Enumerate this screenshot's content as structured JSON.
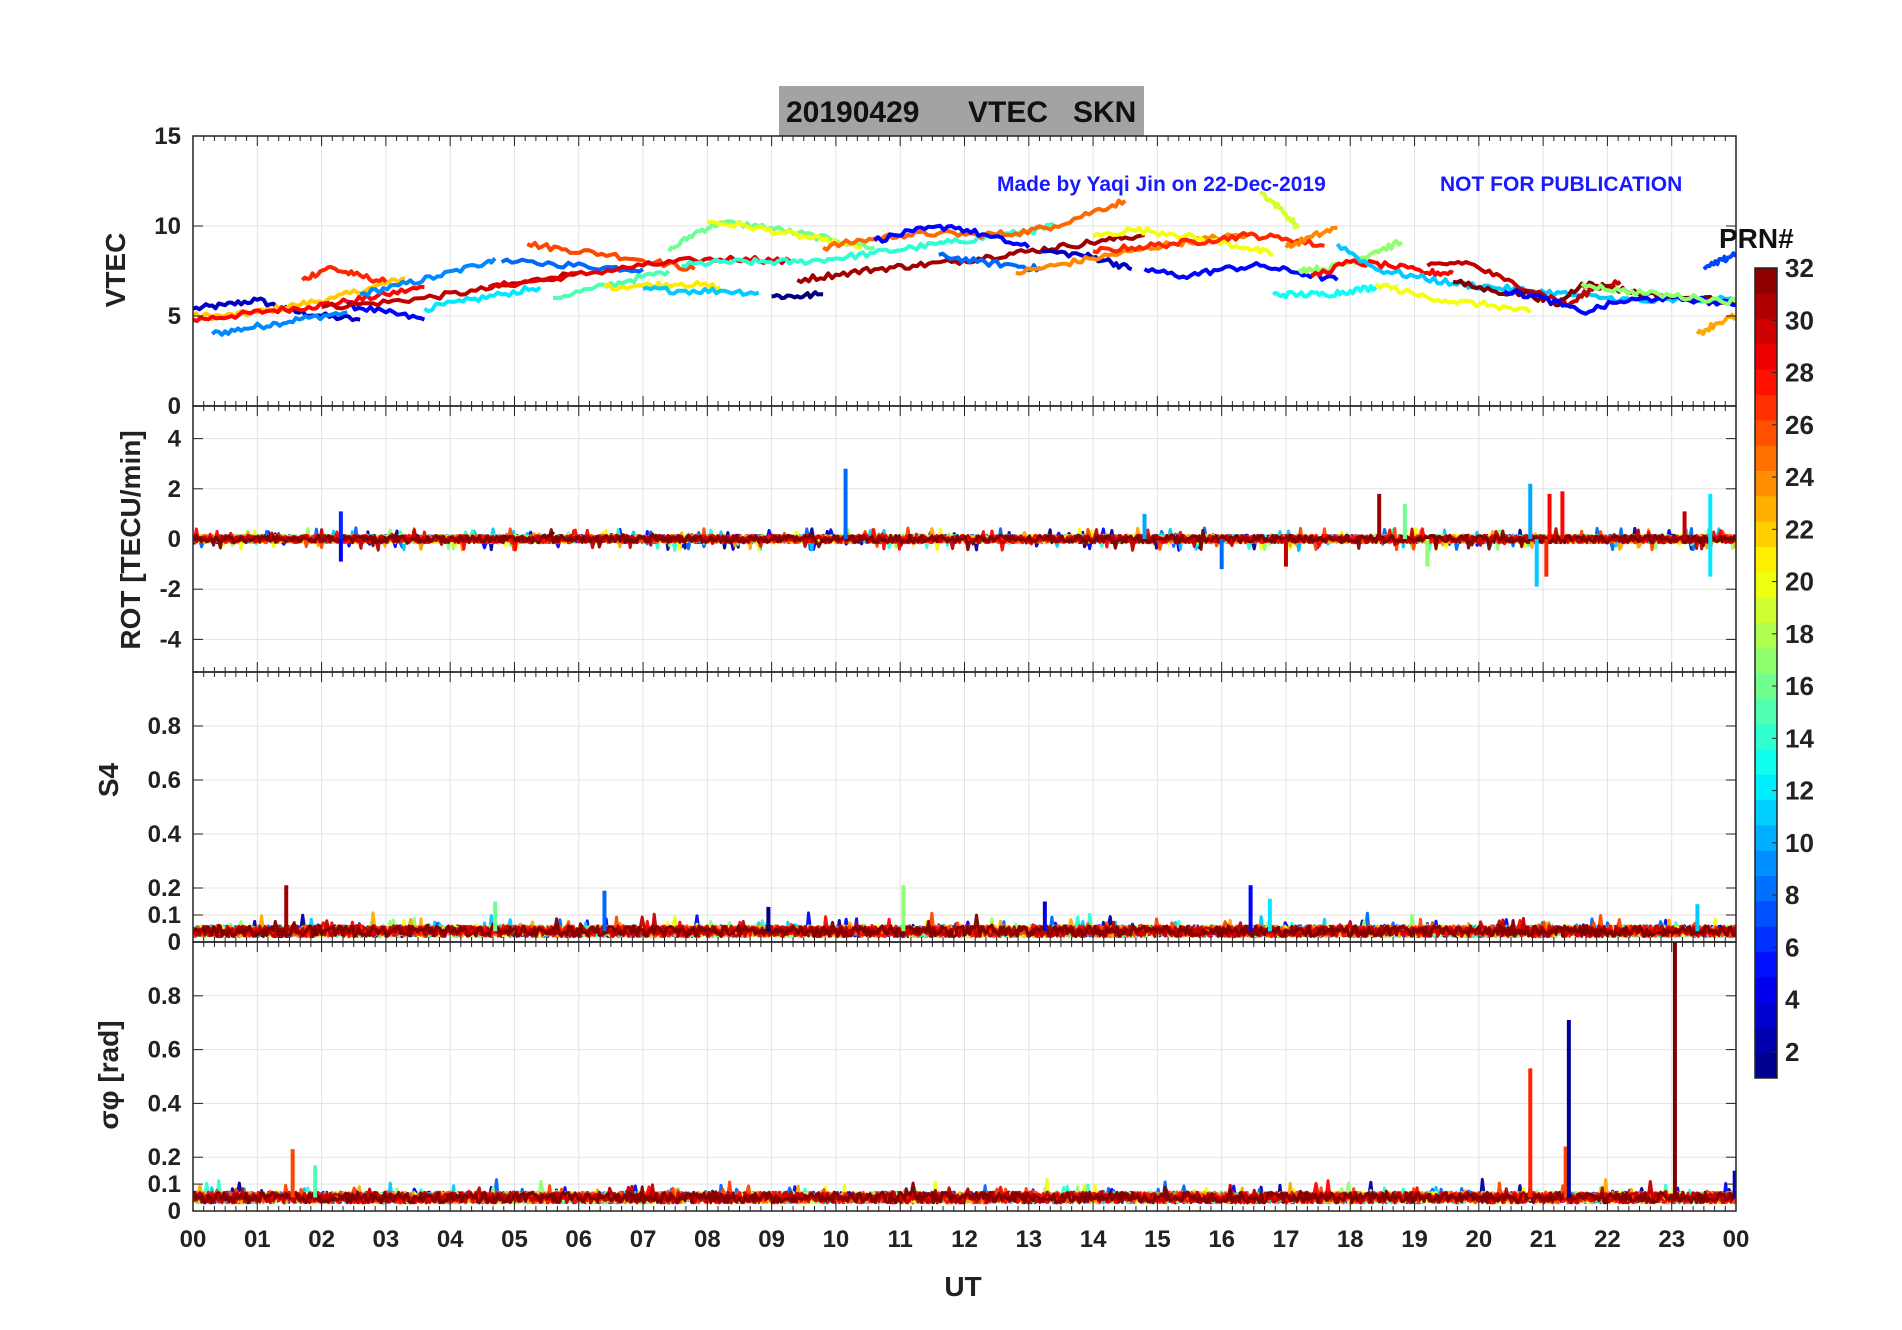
{
  "title": {
    "date": "20190429",
    "quantity": "VTEC",
    "station": "SKN"
  },
  "credit": {
    "made_by": "Made by Yaqi Jin on 22-Dec-2019",
    "notice": "NOT FOR PUBLICATION"
  },
  "colorbar": {
    "title": "PRN#",
    "ticks": [
      "2",
      "4",
      "6",
      "8",
      "10",
      "12",
      "14",
      "16",
      "18",
      "20",
      "22",
      "24",
      "26",
      "28",
      "30",
      "32"
    ],
    "colormap": "jet",
    "range": [
      1,
      32
    ]
  },
  "chart_data": [
    {
      "type": "line",
      "panel": "vtec",
      "ylabel": "VTEC",
      "ylim": [
        0,
        15
      ],
      "yticks": [
        "0",
        "5",
        "10",
        "15"
      ],
      "xlim": [
        0,
        24
      ],
      "grid": true,
      "series": [
        {
          "prn": 3,
          "x": [
            0.0,
            0.5,
            1.0,
            1.5,
            2.0,
            2.6
          ],
          "y": [
            5.4,
            5.6,
            5.9,
            5.3,
            5.0,
            4.8
          ]
        },
        {
          "prn": 9,
          "x": [
            0.3,
            0.8,
            1.3,
            1.8,
            2.4
          ],
          "y": [
            4.0,
            4.3,
            4.6,
            4.9,
            5.2
          ]
        },
        {
          "prn": 22,
          "x": [
            0.0,
            0.5,
            1.0,
            1.6,
            2.2,
            2.8,
            3.3
          ],
          "y": [
            5.0,
            5.0,
            5.2,
            5.6,
            6.0,
            6.6,
            7.1
          ]
        },
        {
          "prn": 28,
          "x": [
            0.0,
            0.6,
            1.2,
            1.8,
            2.4,
            3.0,
            3.6
          ],
          "y": [
            4.8,
            5.0,
            5.3,
            5.5,
            5.8,
            6.2,
            6.6
          ]
        },
        {
          "prn": 27,
          "x": [
            1.7,
            2.1,
            2.5,
            3.0
          ],
          "y": [
            7.0,
            7.7,
            7.3,
            6.9
          ]
        },
        {
          "prn": 5,
          "x": [
            2.4,
            3.0,
            3.6
          ],
          "y": [
            5.6,
            5.2,
            4.8
          ]
        },
        {
          "prn": 9,
          "x": [
            2.6,
            3.2,
            3.8,
            4.4,
            4.7
          ],
          "y": [
            6.2,
            6.7,
            7.2,
            7.8,
            8.2
          ]
        },
        {
          "prn": 30,
          "x": [
            2.0,
            2.8,
            3.6,
            4.4,
            5.2,
            6.0
          ],
          "y": [
            5.5,
            5.7,
            6.0,
            6.4,
            6.9,
            7.4
          ]
        },
        {
          "prn": 12,
          "x": [
            3.6,
            4.2,
            4.8,
            5.4
          ],
          "y": [
            5.4,
            5.8,
            6.2,
            6.6
          ]
        },
        {
          "prn": 8,
          "x": [
            4.8,
            5.6,
            6.4,
            7.0
          ],
          "y": [
            8.0,
            7.9,
            7.7,
            7.6
          ]
        },
        {
          "prn": 26,
          "x": [
            5.2,
            5.8,
            6.5,
            7.2,
            7.8
          ],
          "y": [
            9.0,
            8.7,
            8.4,
            8.0,
            7.6
          ]
        },
        {
          "prn": 29,
          "x": [
            4.6,
            5.4,
            6.2,
            7.0,
            7.8,
            8.6,
            9.3
          ],
          "y": [
            6.6,
            7.0,
            7.4,
            7.8,
            8.1,
            8.2,
            8.0
          ]
        },
        {
          "prn": 15,
          "x": [
            5.6,
            6.2,
            6.8,
            7.4
          ],
          "y": [
            6.0,
            6.5,
            7.0,
            7.5
          ]
        },
        {
          "prn": 21,
          "x": [
            6.4,
            7.0,
            7.6,
            8.2
          ],
          "y": [
            6.6,
            6.7,
            6.8,
            6.6
          ]
        },
        {
          "prn": 16,
          "x": [
            7.4,
            7.8,
            8.2,
            8.8,
            9.4,
            10.0,
            10.6
          ],
          "y": [
            8.6,
            9.6,
            10.2,
            10.0,
            9.6,
            9.2,
            8.8
          ]
        },
        {
          "prn": 20,
          "x": [
            8.0,
            8.6,
            9.2,
            9.8,
            10.4
          ],
          "y": [
            10.2,
            10.0,
            9.6,
            9.2,
            8.8
          ]
        },
        {
          "prn": 14,
          "x": [
            7.6,
            8.2,
            8.8,
            9.4,
            10.0,
            10.6,
            11.2,
            11.8,
            12.4,
            13.0,
            13.4
          ],
          "y": [
            7.8,
            8.0,
            8.0,
            8.0,
            8.2,
            8.5,
            8.8,
            9.1,
            9.4,
            9.7,
            10.0
          ]
        },
        {
          "prn": 11,
          "x": [
            7.0,
            7.6,
            8.2,
            8.8
          ],
          "y": [
            6.5,
            6.4,
            6.4,
            6.3
          ]
        },
        {
          "prn": 1,
          "x": [
            9.0,
            9.4,
            9.8
          ],
          "y": [
            6.1,
            6.1,
            6.2
          ]
        },
        {
          "prn": 31,
          "x": [
            9.4,
            10.0,
            10.6,
            11.2,
            11.8,
            12.4,
            13.0,
            13.6,
            14.2,
            14.8
          ],
          "y": [
            7.0,
            7.3,
            7.6,
            7.8,
            8.0,
            8.3,
            8.6,
            8.9,
            9.2,
            9.5
          ]
        },
        {
          "prn": 25,
          "x": [
            9.8,
            10.4,
            11.0,
            11.6,
            12.2,
            12.8,
            13.4,
            14.0,
            14.5
          ],
          "y": [
            8.8,
            9.2,
            9.5,
            9.6,
            9.5,
            9.6,
            10.0,
            10.8,
            11.4
          ]
        },
        {
          "prn": 5,
          "x": [
            10.6,
            11.2,
            11.8,
            12.4,
            13.0
          ],
          "y": [
            9.2,
            9.7,
            10.0,
            9.4,
            8.8
          ]
        },
        {
          "prn": 8,
          "x": [
            11.6,
            12.2,
            12.8,
            13.2
          ],
          "y": [
            8.4,
            8.0,
            7.8,
            7.6
          ]
        },
        {
          "prn": 3,
          "x": [
            13.2,
            13.8,
            14.2,
            14.6
          ],
          "y": [
            8.6,
            8.4,
            8.1,
            7.6
          ]
        },
        {
          "prn": 24,
          "x": [
            12.8,
            13.4,
            14.0,
            14.6,
            15.2,
            15.8,
            16.4
          ],
          "y": [
            7.4,
            7.8,
            8.2,
            8.6,
            9.0,
            9.3,
            9.5
          ]
        },
        {
          "prn": 20,
          "x": [
            14.0,
            14.6,
            15.2,
            15.8,
            16.4,
            16.8
          ],
          "y": [
            9.4,
            9.8,
            9.6,
            9.2,
            8.8,
            8.4
          ]
        },
        {
          "prn": 5,
          "x": [
            14.8,
            15.4,
            16.0,
            16.6,
            17.2,
            17.8
          ],
          "y": [
            7.6,
            7.2,
            7.6,
            7.8,
            7.4,
            7.0
          ]
        },
        {
          "prn": 27,
          "x": [
            14.0,
            14.6,
            15.2,
            15.8,
            16.4,
            17.0,
            17.6
          ],
          "y": [
            8.6,
            8.8,
            9.0,
            9.2,
            9.5,
            9.3,
            8.9
          ]
        },
        {
          "prn": 19,
          "x": [
            16.6,
            16.9,
            17.2
          ],
          "y": [
            11.9,
            11.0,
            9.9
          ]
        },
        {
          "prn": 24,
          "x": [
            17.0,
            17.4,
            17.8
          ],
          "y": [
            8.8,
            9.4,
            9.9
          ]
        },
        {
          "prn": 13,
          "x": [
            16.8,
            17.2,
            17.6,
            18.0,
            18.4
          ],
          "y": [
            6.2,
            6.2,
            6.2,
            6.4,
            6.6
          ]
        },
        {
          "prn": 17,
          "x": [
            17.2,
            17.6,
            18.0,
            18.4,
            18.8
          ],
          "y": [
            7.6,
            7.6,
            8.0,
            8.6,
            9.1
          ]
        },
        {
          "prn": 28,
          "x": [
            17.4,
            18.0,
            18.6,
            19.2,
            19.6
          ],
          "y": [
            7.2,
            8.0,
            7.8,
            7.4,
            7.4
          ]
        },
        {
          "prn": 11,
          "x": [
            17.8,
            18.4,
            19.0,
            19.6,
            20.2,
            20.8,
            21.4,
            22.0,
            22.6,
            23.2,
            24.0
          ],
          "y": [
            9.0,
            7.6,
            7.2,
            6.8,
            6.6,
            6.4,
            6.2,
            6.0,
            5.8,
            5.9,
            5.9
          ]
        },
        {
          "prn": 20,
          "x": [
            18.4,
            19.0,
            19.6,
            20.2,
            20.8
          ],
          "y": [
            6.8,
            6.2,
            5.8,
            5.6,
            5.2
          ]
        },
        {
          "prn": 30,
          "x": [
            19.2,
            19.8,
            20.4,
            21.0,
            21.4,
            21.8,
            22.2
          ],
          "y": [
            7.8,
            8.0,
            7.0,
            6.2,
            5.6,
            6.6,
            6.9
          ]
        },
        {
          "prn": 32,
          "x": [
            19.6,
            20.2,
            20.8,
            21.2,
            21.6,
            22.0,
            22.6,
            23.2,
            24.0
          ],
          "y": [
            6.9,
            6.4,
            6.2,
            5.6,
            6.8,
            6.6,
            6.2,
            6.0,
            5.8
          ]
        },
        {
          "prn": 5,
          "x": [
            20.4,
            21.0,
            21.6,
            22.2,
            22.8,
            23.4,
            24.0
          ],
          "y": [
            6.4,
            6.0,
            5.2,
            5.8,
            6.0,
            5.9,
            5.6
          ]
        },
        {
          "prn": 17,
          "x": [
            21.6,
            22.2,
            22.8,
            23.4,
            24.0
          ],
          "y": [
            6.8,
            6.4,
            6.2,
            6.0,
            5.8
          ]
        },
        {
          "prn": 23,
          "x": [
            23.4,
            23.7,
            24.0
          ],
          "y": [
            4.0,
            4.6,
            5.0
          ]
        },
        {
          "prn": 7,
          "x": [
            23.5,
            23.8,
            24.0
          ],
          "y": [
            7.6,
            8.1,
            8.5
          ]
        }
      ]
    },
    {
      "type": "line",
      "panel": "rot",
      "ylabel": "ROT [TECU/min]",
      "ylim": [
        -5.3,
        5.3
      ],
      "yticks": [
        "-4",
        "-2",
        "0",
        "2",
        "4"
      ],
      "xlim": [
        0,
        24
      ],
      "grid": true,
      "noise_level": 0.15,
      "spikes": [
        {
          "prn": 8,
          "x": 10.15,
          "y": 2.8
        },
        {
          "prn": 6,
          "x": 2.3,
          "y": 1.1
        },
        {
          "prn": 5,
          "x": 2.3,
          "y": -0.9
        },
        {
          "prn": 10,
          "x": 14.8,
          "y": 1.0
        },
        {
          "prn": 8,
          "x": 16.0,
          "y": -1.2
        },
        {
          "prn": 30,
          "x": 17.0,
          "y": -1.1
        },
        {
          "prn": 31,
          "x": 18.45,
          "y": 1.8
        },
        {
          "prn": 16,
          "x": 18.85,
          "y": 1.4
        },
        {
          "prn": 17,
          "x": 19.2,
          "y": -1.1
        },
        {
          "prn": 10,
          "x": 20.8,
          "y": 2.2
        },
        {
          "prn": 11,
          "x": 20.9,
          "y": -1.9
        },
        {
          "prn": 27,
          "x": 21.05,
          "y": -1.5
        },
        {
          "prn": 28,
          "x": 21.1,
          "y": 1.8
        },
        {
          "prn": 28,
          "x": 21.3,
          "y": 1.9
        },
        {
          "prn": 30,
          "x": 23.2,
          "y": 1.1
        },
        {
          "prn": 12,
          "x": 23.6,
          "y": 1.8
        },
        {
          "prn": 12,
          "x": 23.6,
          "y": -1.5
        }
      ]
    },
    {
      "type": "line",
      "panel": "s4",
      "ylabel": "S4",
      "ylim": [
        0,
        1
      ],
      "yticks": [
        "0",
        "0.1",
        "0.2",
        "0.4",
        "0.6",
        "0.8"
      ],
      "xlim": [
        0,
        24
      ],
      "grid": true,
      "baseline": 0.04,
      "spikes": [
        {
          "prn": 31,
          "x": 1.45,
          "y": 0.21
        },
        {
          "prn": 8,
          "x": 6.4,
          "y": 0.19
        },
        {
          "prn": 1,
          "x": 8.95,
          "y": 0.13
        },
        {
          "prn": 17,
          "x": 11.05,
          "y": 0.21
        },
        {
          "prn": 4,
          "x": 13.25,
          "y": 0.15
        },
        {
          "prn": 5,
          "x": 16.45,
          "y": 0.21
        },
        {
          "prn": 12,
          "x": 16.75,
          "y": 0.16
        },
        {
          "prn": 16,
          "x": 4.7,
          "y": 0.15
        },
        {
          "prn": 11,
          "x": 23.4,
          "y": 0.14
        }
      ]
    },
    {
      "type": "line",
      "panel": "sigma_phi",
      "ylabel": "σφ [rad]",
      "ylim": [
        0,
        1
      ],
      "yticks": [
        "0",
        "0.1",
        "0.2",
        "0.4",
        "0.6",
        "0.8"
      ],
      "xlim": [
        0,
        24
      ],
      "grid": true,
      "baseline": 0.05,
      "spikes": [
        {
          "prn": 26,
          "x": 1.55,
          "y": 0.23
        },
        {
          "prn": 27,
          "x": 20.8,
          "y": 0.53
        },
        {
          "prn": 26,
          "x": 21.35,
          "y": 0.24
        },
        {
          "prn": 2,
          "x": 21.4,
          "y": 0.71
        },
        {
          "prn": 32,
          "x": 23.05,
          "y": 1.0
        },
        {
          "prn": 15,
          "x": 1.9,
          "y": 0.17
        },
        {
          "prn": 3,
          "x": 23.98,
          "y": 0.15
        }
      ]
    }
  ],
  "x_axis": {
    "label": "UT",
    "ticks": [
      "00",
      "01",
      "02",
      "03",
      "04",
      "05",
      "06",
      "07",
      "08",
      "09",
      "10",
      "11",
      "12",
      "13",
      "14",
      "15",
      "16",
      "17",
      "18",
      "19",
      "20",
      "21",
      "22",
      "23",
      "00"
    ]
  }
}
